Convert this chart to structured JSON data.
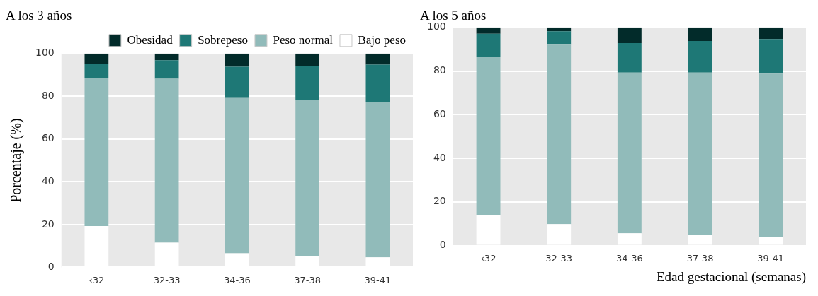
{
  "chart_data": [
    {
      "type": "bar",
      "title": "A los 3 años",
      "ylabel": "Porcentaje (%)",
      "categories": [
        "‹32",
        "32-33",
        "34-36",
        "37-38",
        "39-41"
      ],
      "stacked": true,
      "ylim": [
        0,
        100
      ],
      "yticks": [
        0,
        20,
        40,
        60,
        80,
        100
      ],
      "grid": "y",
      "legend": "top right",
      "series": [
        {
          "name": "Bajo peso",
          "color": "#ffffff",
          "values": [
            19.3,
            11.5,
            6.6,
            5.4,
            4.7
          ]
        },
        {
          "name": "Peso normal",
          "color": "#91bbba",
          "values": [
            69.2,
            76.7,
            72.6,
            72.8,
            72.4
          ]
        },
        {
          "name": "Sobrepeso",
          "color": "#1e7876",
          "values": [
            6.8,
            8.7,
            14.6,
            15.9,
            17.7
          ]
        },
        {
          "name": "Obesidad",
          "color": "#022b2a",
          "values": [
            4.7,
            3.1,
            6.2,
            5.9,
            5.2
          ]
        }
      ]
    },
    {
      "type": "bar",
      "title": "A los 5 años",
      "xlabel": "Edad gestacional (semanas)",
      "categories": [
        "‹32",
        "32-33",
        "34-36",
        "37-38",
        "39-41"
      ],
      "stacked": true,
      "ylim": [
        0,
        100
      ],
      "yticks": [
        0,
        20,
        40,
        60,
        80,
        100
      ],
      "grid": "y",
      "series": [
        {
          "color": "#ffffff",
          "values": [
            13.8,
            9.8,
            5.6,
            5.0,
            3.8
          ]
        },
        {
          "color": "#91bbba",
          "values": [
            72.5,
            82.6,
            73.7,
            74.3,
            75.0
          ]
        },
        {
          "color": "#1e7876",
          "values": [
            10.8,
            5.8,
            13.5,
            14.5,
            15.9
          ]
        },
        {
          "color": "#022b2a",
          "values": [
            2.9,
            1.8,
            7.2,
            6.2,
            5.3
          ]
        }
      ]
    }
  ]
}
